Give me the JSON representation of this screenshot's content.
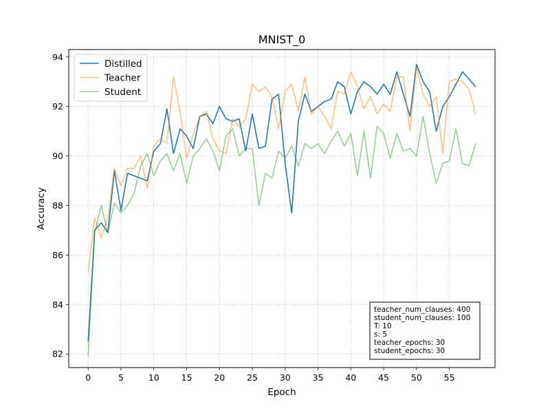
{
  "chart_data": {
    "type": "line",
    "title": "MNIST_0",
    "xlabel": "Epoch",
    "ylabel": "Accuracy",
    "xlim": [
      -2.95,
      61.95
    ],
    "ylim": [
      81.45,
      94.3
    ],
    "xticks": [
      0,
      5,
      10,
      15,
      20,
      25,
      30,
      35,
      40,
      45,
      50,
      55
    ],
    "yticks": [
      82,
      84,
      86,
      88,
      90,
      92,
      94
    ],
    "grid": true,
    "legend_position": "top-left",
    "series": [
      {
        "name": "Distilled",
        "color": "#1f77b4",
        "alpha": 1.0,
        "y": [
          82.5,
          87.0,
          87.3,
          86.9,
          89.4,
          87.8,
          89.3,
          89.2,
          89.1,
          89.0,
          90.2,
          90.5,
          91.9,
          90.1,
          91.1,
          90.8,
          90.3,
          91.6,
          91.7,
          91.3,
          92.0,
          91.5,
          91.4,
          91.5,
          90.2,
          91.7,
          90.3,
          90.4,
          92.3,
          92.5,
          89.7,
          87.7,
          91.4,
          92.5,
          91.8,
          92.0,
          92.2,
          92.3,
          93.0,
          92.8,
          91.7,
          92.6,
          93.0,
          92.8,
          92.5,
          92.9,
          92.5,
          93.4,
          92.5,
          91.6,
          93.7,
          93.0,
          92.6,
          91.0,
          92.0,
          92.4,
          92.9,
          93.4,
          93.1,
          92.8
        ]
      },
      {
        "name": "Teacher",
        "color": "#ff7f0e",
        "alpha": 0.5,
        "y": [
          85.3,
          87.5,
          86.7,
          87.5,
          89.5,
          88.8,
          89.5,
          89.5,
          90.0,
          88.7,
          90.4,
          90.7,
          90.5,
          93.2,
          91.8,
          89.9,
          90.9,
          91.6,
          91.8,
          90.7,
          90.2,
          90.1,
          91.5,
          91.2,
          91.5,
          92.9,
          92.6,
          92.8,
          92.4,
          91.1,
          92.6,
          92.9,
          91.8,
          93.2,
          91.7,
          92.0,
          91.6,
          91.1,
          92.6,
          92.5,
          93.4,
          92.8,
          91.9,
          92.4,
          91.7,
          92.1,
          91.8,
          93.2,
          93.2,
          91.0,
          93.6,
          92.5,
          92.0,
          92.4,
          90.1,
          93.0,
          93.1,
          93.0,
          92.7,
          91.7
        ]
      },
      {
        "name": "Student",
        "color": "#2ca02c",
        "alpha": 0.5,
        "y": [
          81.9,
          86.9,
          88.0,
          86.9,
          88.1,
          87.7,
          88.0,
          88.5,
          89.6,
          90.1,
          89.2,
          89.8,
          90.1,
          89.4,
          90.1,
          88.9,
          90.0,
          90.3,
          90.7,
          90.2,
          89.4,
          90.8,
          91.1,
          90.0,
          90.3,
          90.3,
          88.0,
          89.3,
          89.1,
          90.2,
          89.9,
          90.4,
          89.6,
          90.5,
          90.3,
          90.5,
          90.1,
          90.6,
          91.0,
          90.4,
          90.9,
          89.2,
          91.0,
          89.1,
          91.2,
          90.9,
          89.9,
          90.9,
          90.2,
          90.3,
          90.0,
          91.6,
          90.1,
          88.9,
          89.7,
          89.8,
          91.1,
          89.7,
          89.6,
          90.5
        ]
      }
    ],
    "annotation": [
      "teacher_num_clauses: 400",
      "student_num_clauses: 100",
      "T: 10",
      "s: 5",
      "teacher_epochs: 30",
      "student_epochs: 30"
    ]
  }
}
